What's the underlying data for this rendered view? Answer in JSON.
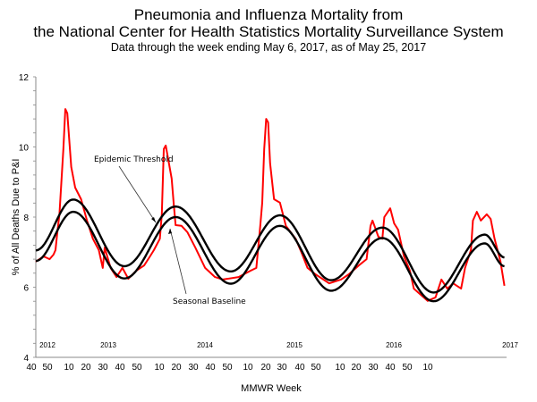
{
  "chart_data": {
    "type": "line",
    "title": "Pneumonia and Influenza Mortality from",
    "title_line2": "the National Center for Health Statistics Mortality Surveillance System",
    "subtitle": "Data through the week ending May 6, 2017, as of May 25, 2017",
    "xlabel": "MMWR Week",
    "ylabel": "% of All Deaths Due to P&I",
    "ylim": [
      4,
      12
    ],
    "y_ticks": [
      "4",
      "6",
      "8",
      "10",
      "12"
    ],
    "x_tick_labels": [
      "40",
      "50",
      "10",
      "20",
      "30",
      "40",
      "50",
      "10",
      "20",
      "30",
      "40",
      "50",
      "10",
      "20",
      "30",
      "40",
      "50",
      "10",
      "20",
      "30",
      "40",
      "50",
      "10"
    ],
    "year_labels": [
      "2012",
      "2013",
      "2014",
      "2015",
      "2016",
      "2017"
    ],
    "xlim": [
      "2012-40",
      "2017-18"
    ],
    "grid": false,
    "colors": {
      "pi_mortality": "#ff0000",
      "baseline": "#000000",
      "threshold": "#000000"
    },
    "annotations": {
      "threshold": "Epidemic Threshold",
      "baseline": "Seasonal Baseline"
    },
    "series": [
      {
        "key": "pi_mortality",
        "points": [
          [
            "2012-40",
            6.73
          ],
          [
            "2012-44",
            6.88
          ],
          [
            "2012-47",
            6.8
          ],
          [
            "2012-49",
            6.93
          ],
          [
            "2012-50",
            7.06
          ],
          [
            "2012-51",
            7.6
          ],
          [
            "2012-52",
            8.08
          ],
          [
            "2013-2",
            9.94
          ],
          [
            "2013-3",
            11.08
          ],
          [
            "2013-4",
            10.96
          ],
          [
            "2013-6",
            9.43
          ],
          [
            "2013-8",
            8.84
          ],
          [
            "2013-11",
            8.51
          ],
          [
            "2013-14",
            7.9
          ],
          [
            "2013-17",
            7.38
          ],
          [
            "2013-20",
            7.06
          ],
          [
            "2013-22",
            6.55
          ],
          [
            "2013-23",
            7.13
          ],
          [
            "2013-26",
            6.55
          ],
          [
            "2013-29",
            6.29
          ],
          [
            "2013-32",
            6.55
          ],
          [
            "2013-35",
            6.24
          ],
          [
            "2013-39",
            6.47
          ],
          [
            "2013-43",
            6.62
          ],
          [
            "2013-46",
            6.88
          ],
          [
            "2013-48",
            7.06
          ],
          [
            "2013-51",
            7.38
          ],
          [
            "2013-52",
            8.08
          ],
          [
            "2014-1",
            9.94
          ],
          [
            "2014-2",
            10.04
          ],
          [
            "2014-5",
            9.1
          ],
          [
            "2014-6",
            8.41
          ],
          [
            "2014-7",
            7.77
          ],
          [
            "2014-10",
            7.75
          ],
          [
            "2014-13",
            7.57
          ],
          [
            "2014-17",
            7.13
          ],
          [
            "2014-22",
            6.55
          ],
          [
            "2014-27",
            6.29
          ],
          [
            "2014-31",
            6.22
          ],
          [
            "2014-39",
            6.29
          ],
          [
            "2014-45",
            6.47
          ],
          [
            "2014-48",
            6.55
          ],
          [
            "2014-50",
            7.75
          ],
          [
            "2014-51",
            8.41
          ],
          [
            "2014-52",
            9.94
          ],
          [
            "2015-1",
            10.8
          ],
          [
            "2015-2",
            10.7
          ],
          [
            "2015-3",
            9.53
          ],
          [
            "2015-5",
            8.51
          ],
          [
            "2015-8",
            8.41
          ],
          [
            "2015-11",
            7.75
          ],
          [
            "2015-16",
            7.38
          ],
          [
            "2015-19",
            6.98
          ],
          [
            "2015-22",
            6.55
          ],
          [
            "2015-26",
            6.37
          ],
          [
            "2015-33",
            6.11
          ],
          [
            "2015-39",
            6.22
          ],
          [
            "2015-43",
            6.37
          ],
          [
            "2015-48",
            6.62
          ],
          [
            "2015-52",
            6.8
          ],
          [
            "2016-2",
            7.75
          ],
          [
            "2016-3",
            7.9
          ],
          [
            "2016-6",
            7.44
          ],
          [
            "2016-8",
            7.38
          ],
          [
            "2016-9",
            8.0
          ],
          [
            "2016-12",
            8.25
          ],
          [
            "2016-14",
            7.82
          ],
          [
            "2016-16",
            7.64
          ],
          [
            "2016-19",
            6.88
          ],
          [
            "2016-22",
            6.47
          ],
          [
            "2016-24",
            5.96
          ],
          [
            "2016-31",
            5.61
          ],
          [
            "2016-35",
            5.71
          ],
          [
            "2016-38",
            6.22
          ],
          [
            "2016-41",
            5.96
          ],
          [
            "2016-44",
            6.11
          ],
          [
            "2016-48",
            5.96
          ],
          [
            "2016-50",
            6.55
          ],
          [
            "2017-1",
            7.06
          ],
          [
            "2017-2",
            7.9
          ],
          [
            "2017-4",
            8.15
          ],
          [
            "2017-6",
            7.9
          ],
          [
            "2017-9",
            8.08
          ],
          [
            "2017-11",
            7.95
          ],
          [
            "2017-13",
            7.38
          ],
          [
            "2017-16",
            6.73
          ],
          [
            "2017-18",
            6.04
          ]
        ]
      },
      {
        "key": "threshold",
        "name": "Epidemic Threshold",
        "points": [
          [
            "2012-40",
            7.05
          ],
          [
            "2013-7",
            8.5
          ],
          [
            "2013-33",
            6.6
          ],
          [
            "2014-7",
            8.3
          ],
          [
            "2014-35",
            6.45
          ],
          [
            "2015-8",
            8.05
          ],
          [
            "2015-34",
            6.2
          ],
          [
            "2016-8",
            7.7
          ],
          [
            "2016-34",
            5.85
          ],
          [
            "2017-8",
            7.5
          ],
          [
            "2017-18",
            6.85
          ]
        ]
      },
      {
        "key": "baseline",
        "name": "Seasonal Baseline",
        "points": [
          [
            "2012-40",
            6.75
          ],
          [
            "2013-7",
            8.15
          ],
          [
            "2013-33",
            6.25
          ],
          [
            "2014-7",
            8.0
          ],
          [
            "2014-35",
            6.1
          ],
          [
            "2015-8",
            7.75
          ],
          [
            "2015-34",
            5.9
          ],
          [
            "2016-8",
            7.4
          ],
          [
            "2016-34",
            5.6
          ],
          [
            "2017-8",
            7.25
          ],
          [
            "2017-18",
            6.6
          ]
        ]
      }
    ]
  }
}
